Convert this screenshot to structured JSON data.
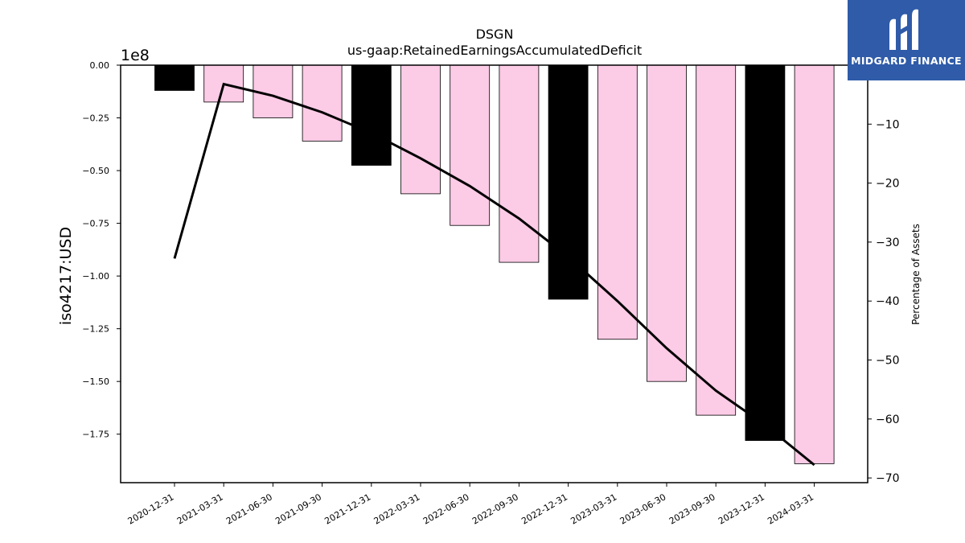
{
  "brand": {
    "name": "MIDGARD FINANCE",
    "logo_icon": "midgard-m-logo-icon",
    "bg_color": "#2f5ba8"
  },
  "chart_data": {
    "type": "bar",
    "title": "DSGN",
    "subtitle": "us-gaap:RetainedEarningsAccumulatedDeficit",
    "ylabel": "iso4217:USD",
    "y_offset_label": "1e8",
    "y2label": "Percentage of Assets",
    "categories": [
      "2020-12-31",
      "2021-03-31",
      "2021-06-30",
      "2021-09-30",
      "2021-12-31",
      "2022-03-31",
      "2022-06-30",
      "2022-09-30",
      "2022-12-31",
      "2023-03-31",
      "2023-06-30",
      "2023-09-30",
      "2023-12-31",
      "2024-03-31"
    ],
    "series": [
      {
        "values": [
          -0.12,
          -0.175,
          -0.25,
          -0.36,
          -0.475,
          -0.61,
          -0.76,
          -0.935,
          -1.11,
          -1.3,
          -1.5,
          -1.66,
          -1.78,
          -1.89
        ]
      },
      {
        "axis": "right",
        "type": "line",
        "values": [
          -32.8,
          -3.2,
          -5.2,
          -8.0,
          -11.5,
          -15.8,
          -20.5,
          -26.0,
          -32.5,
          -40.0,
          -48.0,
          -55.2,
          -61.0,
          -67.8
        ]
      }
    ],
    "bar_colors": [
      "#000000",
      "#fccbe6",
      "#fccbe6",
      "#fccbe6",
      "#000000",
      "#fccbe6",
      "#fccbe6",
      "#fccbe6",
      "#000000",
      "#fccbe6",
      "#fccbe6",
      "#fccbe6",
      "#000000",
      "#fccbe6"
    ],
    "line_color": "#000000",
    "ylim": [
      -1.98,
      0.0
    ],
    "y_ticks": [
      "0.00",
      "−0.25",
      "−0.50",
      "−0.75",
      "−1.00",
      "−1.25",
      "−1.50",
      "−1.75"
    ],
    "y_tick_values": [
      0,
      -0.25,
      -0.5,
      -0.75,
      -1.0,
      -1.25,
      -1.5,
      -1.75
    ],
    "y2lim": [
      -70.8,
      0.0
    ],
    "y2_ticks": [
      "−10",
      "−20",
      "−30",
      "−40",
      "−50",
      "−60",
      "−70"
    ],
    "y2_tick_values": [
      -10,
      -20,
      -30,
      -40,
      -50,
      -60,
      -70
    ],
    "grid": false
  }
}
